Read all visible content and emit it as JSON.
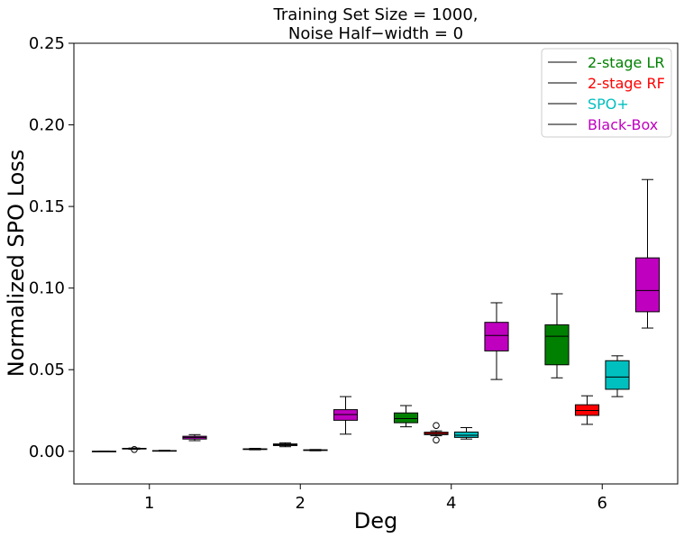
{
  "chart_data": {
    "type": "box",
    "title_lines": [
      "Training Set Size = 1000,",
      "Noise Half−width = 0"
    ],
    "xlabel": "Deg",
    "ylabel": "Normalized SPO Loss",
    "categories": [
      "1",
      "2",
      "4",
      "6"
    ],
    "ylim": [
      -0.02,
      0.25
    ],
    "yticks": [
      "0.00",
      "0.05",
      "0.10",
      "0.15",
      "0.20",
      "0.25"
    ],
    "legend_position": "top-right",
    "series": [
      {
        "name": "2-stage LR",
        "color": "#008000",
        "boxes": [
          {
            "whislo": 0.0,
            "q1": 0.0,
            "med": 0.0,
            "q3": 0.0,
            "whishi": 0.0,
            "fliers": []
          },
          {
            "whislo": 0.0009,
            "q1": 0.0011,
            "med": 0.0013,
            "q3": 0.0015,
            "whishi": 0.0018,
            "fliers": []
          },
          {
            "whislo": 0.015,
            "q1": 0.0175,
            "med": 0.02,
            "q3": 0.0235,
            "whishi": 0.028,
            "fliers": []
          },
          {
            "whislo": 0.045,
            "q1": 0.053,
            "med": 0.0705,
            "q3": 0.0775,
            "whishi": 0.0965,
            "fliers": []
          }
        ]
      },
      {
        "name": "2-stage RF",
        "color": "#ff0000",
        "boxes": [
          {
            "whislo": 0.0012,
            "q1": 0.0014,
            "med": 0.0016,
            "q3": 0.0018,
            "whishi": 0.002,
            "fliers": [
              0.0011
            ]
          },
          {
            "whislo": 0.0028,
            "q1": 0.0035,
            "med": 0.004,
            "q3": 0.0045,
            "whishi": 0.0052,
            "fliers": []
          },
          {
            "whislo": 0.0095,
            "q1": 0.0102,
            "med": 0.0108,
            "q3": 0.0117,
            "whishi": 0.0125,
            "fliers": [
              0.0069,
              0.0158
            ]
          },
          {
            "whislo": 0.0165,
            "q1": 0.022,
            "med": 0.025,
            "q3": 0.0285,
            "whishi": 0.034,
            "fliers": []
          }
        ]
      },
      {
        "name": "SPO+",
        "color": "#00bfbf",
        "boxes": [
          {
            "whislo": 0.0001,
            "q1": 0.0002,
            "med": 0.0003,
            "q3": 0.0004,
            "whishi": 0.0006,
            "fliers": []
          },
          {
            "whislo": 0.0003,
            "q1": 0.0005,
            "med": 0.0007,
            "q3": 0.0009,
            "whishi": 0.0011,
            "fliers": []
          },
          {
            "whislo": 0.0075,
            "q1": 0.0085,
            "med": 0.0098,
            "q3": 0.0118,
            "whishi": 0.0145,
            "fliers": []
          },
          {
            "whislo": 0.0335,
            "q1": 0.038,
            "med": 0.0455,
            "q3": 0.0555,
            "whishi": 0.0585,
            "fliers": []
          }
        ]
      },
      {
        "name": "Black-Box",
        "color": "#bf00bf",
        "boxes": [
          {
            "whislo": 0.0065,
            "q1": 0.0075,
            "med": 0.0085,
            "q3": 0.0092,
            "whishi": 0.0102,
            "fliers": []
          },
          {
            "whislo": 0.0105,
            "q1": 0.019,
            "med": 0.0225,
            "q3": 0.0255,
            "whishi": 0.0335,
            "fliers": []
          },
          {
            "whislo": 0.044,
            "q1": 0.0615,
            "med": 0.071,
            "q3": 0.079,
            "whishi": 0.091,
            "fliers": []
          },
          {
            "whislo": 0.0755,
            "q1": 0.0855,
            "med": 0.0985,
            "q3": 0.1185,
            "whishi": 0.1665,
            "fliers": []
          }
        ]
      }
    ]
  }
}
